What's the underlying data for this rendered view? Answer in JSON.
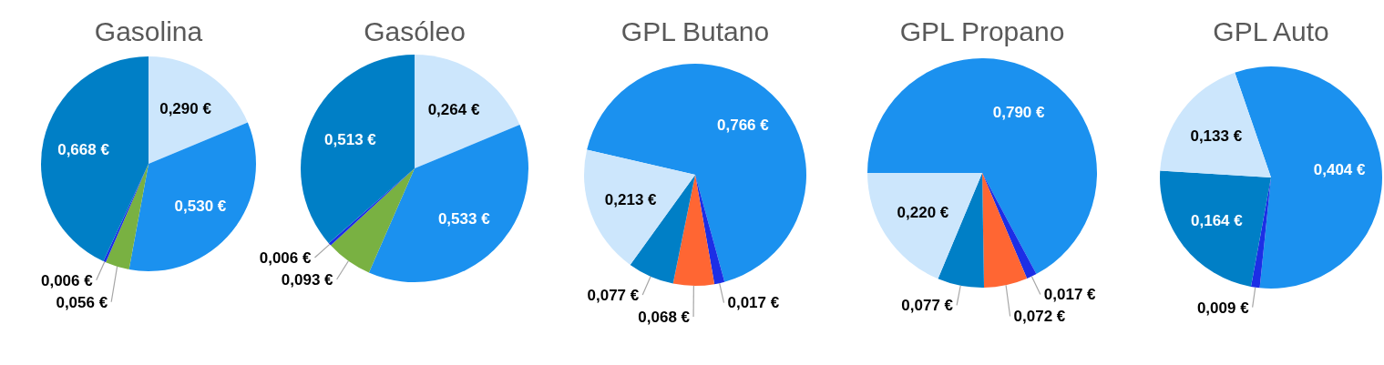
{
  "chart_data": [
    {
      "type": "pie",
      "title": "Gasolina",
      "categories": [
        null,
        null,
        null,
        null,
        null
      ],
      "values": [
        0.29,
        0.53,
        0.056,
        0.006,
        0.668
      ],
      "colors": [
        "#cce6fc",
        "#1b91ef",
        "#79b142",
        "#1c2ee6",
        "#007fc6"
      ],
      "value_labels": [
        "0,290 €",
        "0,530 €",
        "0,056 €",
        "0,006 €",
        "0,668 €"
      ]
    },
    {
      "type": "pie",
      "title": "Gasóleo",
      "categories": [
        null,
        null,
        null,
        null,
        null
      ],
      "values": [
        0.264,
        0.533,
        0.093,
        0.006,
        0.513
      ],
      "colors": [
        "#cce6fc",
        "#1b91ef",
        "#79b142",
        "#1c2ee6",
        "#007fc6"
      ],
      "value_labels": [
        "0,264 €",
        "0,533 €",
        "0,093 €",
        "0,006 €",
        "0,513 €"
      ]
    },
    {
      "type": "pie",
      "title": "GPL Butano",
      "categories": [
        null,
        null,
        null,
        null,
        null
      ],
      "values": [
        0.766,
        0.017,
        0.068,
        0.077,
        0.213
      ],
      "colors": [
        "#1b91ef",
        "#1c2ee6",
        "#ff6633",
        "#007fc6",
        "#cce6fc"
      ],
      "value_labels": [
        "0,766 €",
        "0,017 €",
        "0,068 €",
        "0,077 €",
        "0,213 €"
      ]
    },
    {
      "type": "pie",
      "title": "GPL Propano",
      "categories": [
        null,
        null,
        null,
        null,
        null
      ],
      "values": [
        0.79,
        0.017,
        0.072,
        0.077,
        0.22
      ],
      "colors": [
        "#1b91ef",
        "#1c2ee6",
        "#ff6633",
        "#007fc6",
        "#cce6fc"
      ],
      "value_labels": [
        "0,790 €",
        "0,017 €",
        "0,072 €",
        "0,077 €",
        "0,220 €"
      ]
    },
    {
      "type": "pie",
      "title": "GPL Auto",
      "categories": [
        null,
        null,
        null,
        null
      ],
      "values": [
        0.404,
        0.009,
        0.164,
        0.133
      ],
      "colors": [
        "#1b91ef",
        "#1c2ee6",
        "#007fc6",
        "#cce6fc"
      ],
      "value_labels": [
        "0,404 €",
        "0,009 €",
        "0,164 €",
        "0,133 €"
      ]
    }
  ]
}
